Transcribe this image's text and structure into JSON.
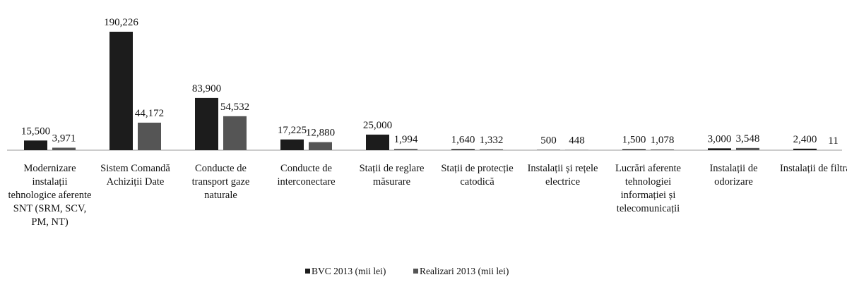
{
  "chart_data": {
    "type": "bar",
    "categories": [
      "Modernizare instalații tehnologice aferente SNT (SRM, SCV, PM, NT)",
      "Sistem Comandă Achiziții Date",
      "Conducte de transport gaze naturale",
      "Conducte de interconectare",
      "Stații de reglare măsurare",
      "Stații de protecție catodică",
      "Instalații și rețele electrice",
      "Lucrări aferente tehnologiei informației și telecomunicații",
      "Instalații de odorizare",
      "Instalații de filtrare"
    ],
    "series": [
      {
        "name": "BVC 2013 (mii lei)",
        "color": "#1c1c1c",
        "values": [
          15500,
          190226,
          83900,
          17225,
          25000,
          1640,
          500,
          1500,
          3000,
          2400
        ],
        "value_labels": [
          "15,500",
          "190,226",
          "83,900",
          "17,225",
          "25,000",
          "1,640",
          "500",
          "1,500",
          "3,000",
          "2,400"
        ]
      },
      {
        "name": "Realizari 2013  (mii lei)",
        "color": "#555555",
        "values": [
          3971,
          44172,
          54532,
          12880,
          1994,
          1332,
          448,
          1078,
          3548,
          11
        ],
        "value_labels": [
          "3,971",
          "44,172",
          "54,532",
          "12,880",
          "1,994",
          "1,332",
          "448",
          "1,078",
          "3,548",
          "11"
        ]
      }
    ],
    "legend": "bottom"
  }
}
